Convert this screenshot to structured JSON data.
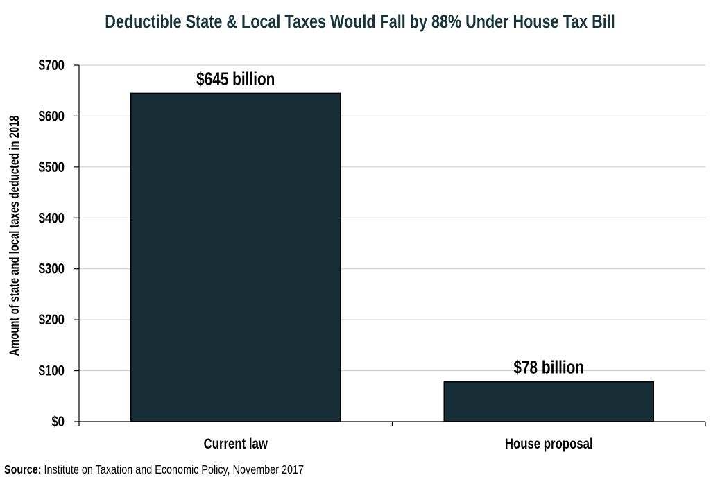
{
  "chart_data": {
    "type": "bar",
    "title": "Deductible State & Local Taxes Would Fall by 88% Under House Tax Bill",
    "xlabel": "",
    "ylabel": "Amount of state and local taxes deducted in 2018",
    "categories": [
      "Current law",
      "House proposal"
    ],
    "values": [
      645,
      78
    ],
    "data_labels": [
      "$645 billion",
      "$78 billion"
    ],
    "ylim": [
      0,
      700
    ],
    "yticks": [
      0,
      100,
      200,
      300,
      400,
      500,
      600,
      700
    ],
    "ytick_labels": [
      "$0",
      "$100",
      "$200",
      "$300",
      "$400",
      "$500",
      "$600",
      "$700"
    ],
    "grid": true,
    "bar_color": "#172e36",
    "title_color": "#17343a"
  },
  "source": {
    "label": "Source:",
    "text": " Institute on Taxation and Economic Policy, November 2017"
  }
}
